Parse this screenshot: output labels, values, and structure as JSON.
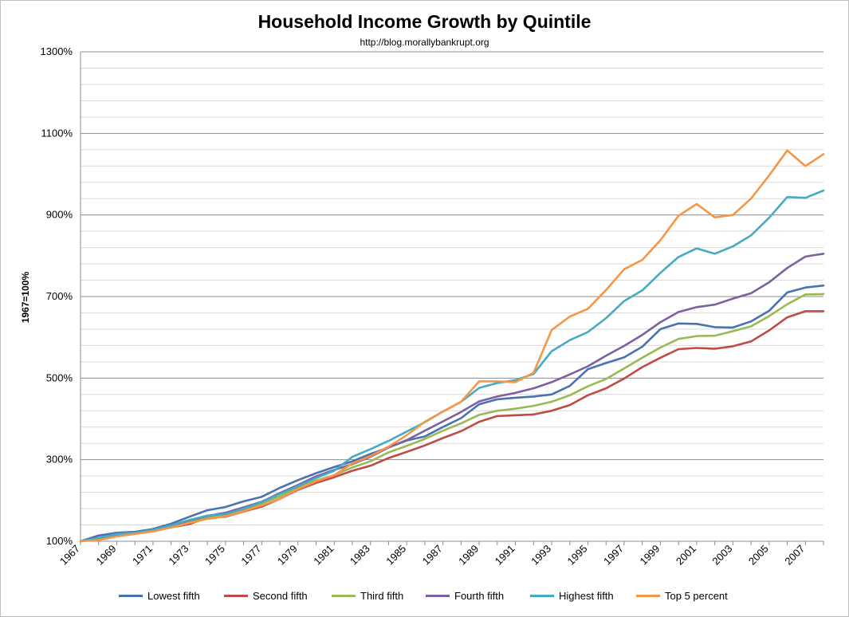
{
  "chart_data": {
    "type": "line",
    "title": "Household Income Growth by Quintile",
    "subtitle": "http://blog.morallybankrupt.org",
    "xlabel": "",
    "ylabel": "1967=100%",
    "ylim": [
      100,
      1300
    ],
    "y_ticks": [
      "100%",
      "300%",
      "500%",
      "700%",
      "900%",
      "1100%",
      "1300%"
    ],
    "y_tick_values": [
      100,
      300,
      500,
      700,
      900,
      1100,
      1300
    ],
    "x_tick_labels": [
      "1967",
      "1969",
      "1971",
      "1973",
      "1975",
      "1977",
      "1979",
      "1981",
      "1983",
      "1985",
      "1987",
      "1989",
      "1991",
      "1993",
      "1995",
      "1997",
      "1999",
      "2001",
      "2003",
      "2005",
      "2007"
    ],
    "grid": true,
    "legend_position": "bottom",
    "x": [
      1967,
      1968,
      1969,
      1970,
      1971,
      1972,
      1973,
      1974,
      1975,
      1976,
      1977,
      1978,
      1979,
      1980,
      1981,
      1982,
      1983,
      1984,
      1985,
      1986,
      1987,
      1988,
      1989,
      1990,
      1991,
      1992,
      1993,
      1994,
      1995,
      1996,
      1997,
      1998,
      1999,
      2000,
      2001,
      2002,
      2003,
      2004,
      2005,
      2006,
      2007,
      2008
    ],
    "series": [
      {
        "name": "Lowest fifth",
        "color": "#4a72b0",
        "values": [
          100,
          114,
          121,
          123,
          130,
          143,
          160,
          176,
          184,
          198,
          209,
          231,
          250,
          267,
          282,
          296,
          314,
          330,
          347,
          357,
          380,
          402,
          436,
          448,
          452,
          455,
          460,
          481,
          522,
          537,
          551,
          577,
          620,
          634,
          633,
          625,
          624,
          639,
          665,
          710,
          722,
          727
        ]
      },
      {
        "name": "Second fifth",
        "color": "#be4b48",
        "values": [
          100,
          106,
          115,
          119,
          125,
          134,
          142,
          158,
          160,
          173,
          185,
          204,
          226,
          243,
          257,
          273,
          285,
          304,
          319,
          335,
          353,
          370,
          393,
          407,
          409,
          411,
          420,
          434,
          458,
          475,
          499,
          527,
          550,
          571,
          574,
          572,
          578,
          590,
          617,
          649,
          664,
          664
        ]
      },
      {
        "name": "Third fifth",
        "color": "#98b954",
        "values": [
          100,
          108,
          116,
          120,
          126,
          137,
          149,
          160,
          165,
          177,
          193,
          210,
          232,
          249,
          262,
          281,
          296,
          318,
          334,
          351,
          371,
          389,
          410,
          420,
          425,
          432,
          442,
          458,
          480,
          498,
          524,
          550,
          575,
          596,
          603,
          604,
          615,
          627,
          652,
          681,
          705,
          706
        ]
      },
      {
        "name": "Fourth fifth",
        "color": "#7d60a0",
        "values": [
          100,
          108,
          117,
          121,
          127,
          138,
          151,
          162,
          170,
          183,
          197,
          218,
          238,
          259,
          275,
          289,
          307,
          330,
          348,
          371,
          394,
          417,
          443,
          455,
          464,
          475,
          490,
          509,
          529,
          555,
          579,
          606,
          637,
          662,
          674,
          680,
          695,
          708,
          735,
          770,
          798,
          805
        ]
      },
      {
        "name": "Highest fifth",
        "color": "#46aac5",
        "values": [
          100,
          108,
          118,
          121,
          128,
          139,
          152,
          163,
          167,
          180,
          196,
          216,
          235,
          255,
          273,
          307,
          326,
          346,
          369,
          392,
          418,
          442,
          476,
          488,
          495,
          510,
          566,
          593,
          613,
          647,
          689,
          715,
          758,
          797,
          818,
          805,
          823,
          850,
          893,
          944,
          942,
          960
        ]
      },
      {
        "name": "Top 5 percent",
        "color": "#f59646",
        "values": [
          100,
          103,
          112,
          118,
          124,
          134,
          145,
          155,
          161,
          174,
          188,
          204,
          228,
          247,
          262,
          291,
          309,
          332,
          360,
          393,
          418,
          442,
          492,
          492,
          490,
          513,
          618,
          651,
          670,
          716,
          767,
          790,
          838,
          898,
          927,
          894,
          900,
          940,
          997,
          1058,
          1020,
          1049
        ]
      }
    ]
  }
}
